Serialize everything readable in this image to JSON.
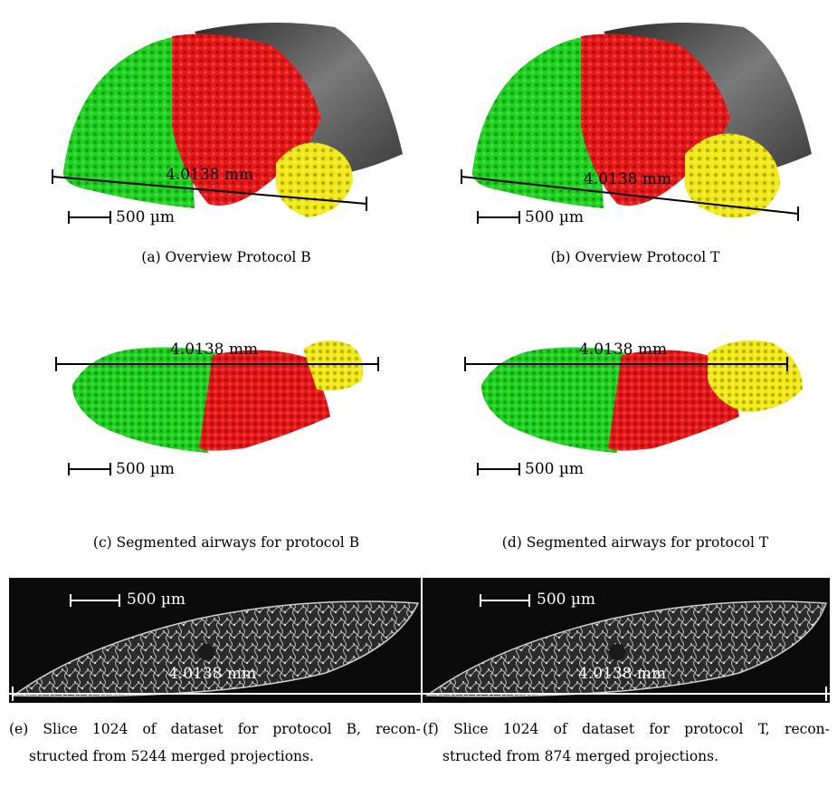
{
  "figures": {
    "a": {
      "caption": "(a) Overview Protocol B",
      "measure": "4.0138 mm",
      "scale": "500 µm"
    },
    "b": {
      "caption": "(b) Overview Protocol T",
      "measure": "4.0138 mm",
      "scale": "500 µm"
    },
    "c": {
      "caption": "(c) Segmented airways for protocol B",
      "measure": "4.0138 mm",
      "scale": "500 µm"
    },
    "d": {
      "caption": "(d) Segmented airways for protocol T",
      "measure": "4.0138 mm",
      "scale": "500 µm"
    },
    "e": {
      "caption_line1": [
        "(e)",
        "Slice",
        "1024",
        "of",
        "dataset",
        "for",
        "protocol",
        "B,",
        "recon-"
      ],
      "caption_line2": "structed from 5244 merged projections.",
      "measure": "4.0138 mm",
      "scale": "500 µm"
    },
    "f": {
      "caption_line1": [
        "(f)",
        "Slice",
        "1024",
        "of",
        "dataset",
        "for",
        "protocol",
        "T,",
        "recon-"
      ],
      "caption_line2": "structed from 874 merged projections.",
      "measure": "4.0138 mm",
      "scale": "500 µm"
    }
  },
  "colors": {
    "green": "#1fd21f",
    "red": "#e81818",
    "yellow": "#f2ea18",
    "gray": "#5a5a5a"
  }
}
